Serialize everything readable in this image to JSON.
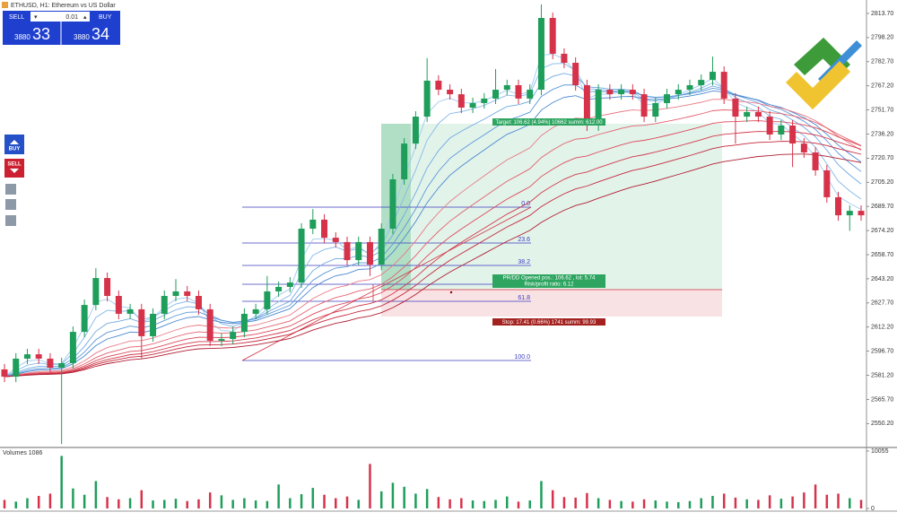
{
  "chart_data": {
    "type": "candlestick",
    "title": "ETHUSD, H1: Ethereum vs US Dollar",
    "colors": {
      "up": "#1e9e5a",
      "down": "#d6334a"
    },
    "ylim": [
      2535.4,
      2822.34
    ],
    "yticks": [
      {
        "value": 2813.7,
        "label": "2813.70"
      },
      {
        "value": 2798.2,
        "label": "2798.20"
      },
      {
        "value": 2782.7,
        "label": "2782.70"
      },
      {
        "value": 2767.2,
        "label": "2767.20"
      },
      {
        "value": 2751.7,
        "label": "2751.70"
      },
      {
        "value": 2736.2,
        "label": "2736.20"
      },
      {
        "value": 2720.7,
        "label": "2720.70"
      },
      {
        "value": 2705.2,
        "label": "2705.20"
      },
      {
        "value": 2689.7,
        "label": "2689.70"
      },
      {
        "value": 2674.2,
        "label": "2674.20"
      },
      {
        "value": 2658.7,
        "label": "2658.70"
      },
      {
        "value": 2643.2,
        "label": "2643.20"
      },
      {
        "value": 2627.7,
        "label": "2627.70"
      },
      {
        "value": 2612.2,
        "label": "2612.20"
      },
      {
        "value": 2596.7,
        "label": "2596.70"
      },
      {
        "value": 2581.2,
        "label": "2581.20"
      },
      {
        "value": 2565.7,
        "label": "2565.70"
      },
      {
        "value": 2550.2,
        "label": "2550.20"
      }
    ],
    "series": [
      {
        "name": "ETHUSD",
        "ohlc": [
          [
            2585.0,
            2588.5,
            2576.8,
            2580.3
          ],
          [
            2580.3,
            2595.4,
            2576.8,
            2591.9
          ],
          [
            2591.9,
            2598.2,
            2588.4,
            2594.7
          ],
          [
            2594.7,
            2598.2,
            2588.4,
            2591.9
          ],
          [
            2591.9,
            2595.4,
            2582.6,
            2586.1
          ],
          [
            2586.1,
            2592.5,
            2537.0,
            2589.0
          ],
          [
            2589.0,
            2612.6,
            2585.5,
            2609.1
          ],
          [
            2609.1,
            2629.9,
            2605.6,
            2626.4
          ],
          [
            2626.4,
            2650.0,
            2622.9,
            2643.7
          ],
          [
            2643.7,
            2647.2,
            2628.7,
            2632.2
          ],
          [
            2632.2,
            2635.7,
            2617.2,
            2620.7
          ],
          [
            2620.7,
            2627.1,
            2617.2,
            2623.6
          ],
          [
            2623.6,
            2627.1,
            2592.0,
            2606.3
          ],
          [
            2606.3,
            2624.2,
            2602.8,
            2620.7
          ],
          [
            2620.7,
            2635.7,
            2617.2,
            2632.2
          ],
          [
            2632.2,
            2643.0,
            2628.7,
            2635.1
          ],
          [
            2635.1,
            2638.6,
            2628.7,
            2632.2
          ],
          [
            2632.2,
            2635.7,
            2620.1,
            2623.6
          ],
          [
            2623.6,
            2627.1,
            2599.9,
            2603.4
          ],
          [
            2603.4,
            2608.0,
            2599.9,
            2604.5
          ],
          [
            2604.5,
            2612.6,
            2601.0,
            2609.1
          ],
          [
            2609.1,
            2624.2,
            2605.6,
            2620.7
          ],
          [
            2620.7,
            2627.1,
            2617.2,
            2623.6
          ],
          [
            2623.6,
            2645.0,
            2620.1,
            2635.1
          ],
          [
            2635.1,
            2641.5,
            2631.6,
            2638.0
          ],
          [
            2638.0,
            2644.3,
            2634.5,
            2640.8
          ],
          [
            2640.8,
            2678.9,
            2637.3,
            2675.4
          ],
          [
            2675.4,
            2688.0,
            2671.9,
            2681.2
          ],
          [
            2681.2,
            2684.7,
            2666.1,
            2669.6
          ],
          [
            2669.6,
            2673.1,
            2663.3,
            2666.8
          ],
          [
            2666.8,
            2670.3,
            2651.7,
            2655.2
          ],
          [
            2655.2,
            2670.3,
            2651.7,
            2666.8
          ],
          [
            2666.8,
            2670.3,
            2645.0,
            2652.3
          ],
          [
            2652.3,
            2678.9,
            2648.8,
            2675.4
          ],
          [
            2675.4,
            2710.6,
            2671.9,
            2707.1
          ],
          [
            2707.1,
            2733.6,
            2703.6,
            2730.1
          ],
          [
            2730.1,
            2750.9,
            2726.6,
            2747.4
          ],
          [
            2747.4,
            2785.0,
            2743.9,
            2770.5
          ],
          [
            2770.5,
            2774.0,
            2761.2,
            2764.7
          ],
          [
            2764.7,
            2768.2,
            2758.3,
            2761.8
          ],
          [
            2761.8,
            2765.3,
            2749.7,
            2753.2
          ],
          [
            2753.2,
            2759.6,
            2749.7,
            2756.1
          ],
          [
            2756.1,
            2762.5,
            2752.6,
            2759.0
          ],
          [
            2759.0,
            2778.0,
            2755.5,
            2764.7
          ],
          [
            2764.7,
            2771.1,
            2761.2,
            2767.6
          ],
          [
            2767.6,
            2771.1,
            2755.5,
            2759.0
          ],
          [
            2759.0,
            2768.2,
            2755.5,
            2764.7
          ],
          [
            2764.7,
            2819.5,
            2761.2,
            2810.8
          ],
          [
            2810.8,
            2814.3,
            2784.3,
            2787.8
          ],
          [
            2787.8,
            2791.3,
            2778.5,
            2782.0
          ],
          [
            2782.0,
            2785.5,
            2764.1,
            2767.6
          ],
          [
            2767.6,
            2771.1,
            2738.2,
            2741.7
          ],
          [
            2741.7,
            2768.2,
            2738.2,
            2764.7
          ],
          [
            2764.7,
            2768.2,
            2758.3,
            2761.8
          ],
          [
            2761.8,
            2768.2,
            2758.3,
            2764.7
          ],
          [
            2764.7,
            2768.2,
            2758.3,
            2761.8
          ],
          [
            2761.8,
            2765.3,
            2743.9,
            2747.4
          ],
          [
            2747.4,
            2759.6,
            2743.9,
            2756.1
          ],
          [
            2756.1,
            2765.3,
            2752.6,
            2761.8
          ],
          [
            2761.8,
            2768.2,
            2758.3,
            2764.7
          ],
          [
            2764.7,
            2771.1,
            2761.2,
            2767.6
          ],
          [
            2767.6,
            2774.5,
            2764.1,
            2771.0
          ],
          [
            2771.0,
            2786.0,
            2767.5,
            2776.2
          ],
          [
            2776.2,
            2779.7,
            2755.5,
            2759.0
          ],
          [
            2759.0,
            2762.5,
            2730.0,
            2747.4
          ],
          [
            2747.4,
            2753.8,
            2743.9,
            2750.3
          ],
          [
            2750.3,
            2753.8,
            2743.9,
            2747.4
          ],
          [
            2747.4,
            2750.9,
            2732.4,
            2735.9
          ],
          [
            2735.9,
            2745.2,
            2732.4,
            2741.7
          ],
          [
            2741.7,
            2745.2,
            2715.0,
            2730.1
          ],
          [
            2730.1,
            2733.6,
            2720.9,
            2724.4
          ],
          [
            2724.4,
            2727.9,
            2709.4,
            2712.9
          ],
          [
            2712.9,
            2716.4,
            2692.1,
            2695.6
          ],
          [
            2695.6,
            2699.1,
            2680.5,
            2684.0
          ],
          [
            2684.0,
            2690.4,
            2674.0,
            2686.9
          ],
          [
            2686.9,
            2690.4,
            2680.5,
            2684.0
          ]
        ]
      }
    ],
    "volume": {
      "label": "Volumes 1086",
      "ylim": [
        0,
        10055
      ],
      "yticks": [
        10055,
        0
      ],
      "values": [
        1500,
        1200,
        1800,
        2200,
        2600,
        9200,
        3500,
        2400,
        4800,
        2000,
        1600,
        1800,
        3200,
        1400,
        1500,
        1700,
        1300,
        1600,
        2800,
        2300,
        1500,
        1800,
        1400,
        1300,
        4200,
        1800,
        2500,
        3600,
        2400,
        1800,
        2100,
        1500,
        7800,
        3000,
        4500,
        3800,
        2600,
        3400,
        2000,
        1600,
        1800,
        1400,
        1300,
        1500,
        2100,
        1200,
        1400,
        4800,
        3200,
        2000,
        1900,
        2700,
        1800,
        1500,
        1300,
        1200,
        1600,
        1400,
        1200,
        1100,
        1300,
        1800,
        2200,
        2600,
        1900,
        1600,
        1500,
        2300,
        1700,
        2100,
        2800,
        4200,
        2400,
        2600,
        1800,
        1500
      ]
    },
    "trade_panel": {
      "sell": "SELL",
      "buy": "BUY",
      "lot": "0.01",
      "sell_main": "3880",
      "sell_pips": "33",
      "buy_main": "3880",
      "buy_pips": "34"
    },
    "side_buttons": {
      "buy": "BUY",
      "sell": "SELL"
    },
    "fibonacci": {
      "levels": [
        "0.0",
        "23.6",
        "38.2",
        "61.8",
        "100.0"
      ]
    },
    "position": {
      "target": "Target: 106.62 (4.94%) 10662 summ:  612.00",
      "pr_dd": "PR/DD Opened pos.: 106.62 , lot: 5.74",
      "ratio": "Risk/profit ratio: 6.12",
      "stop": "Stop: 17.41 (0.66%) 1741 summ:  99.93"
    }
  }
}
